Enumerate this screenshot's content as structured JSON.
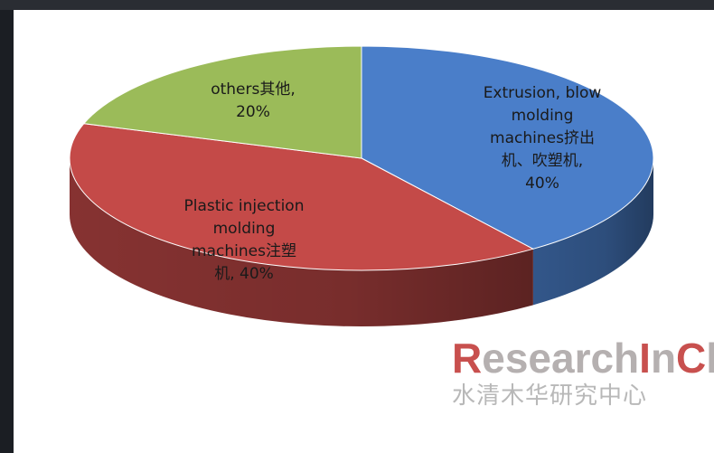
{
  "chart_data": {
    "type": "pie",
    "slices": [
      {
        "label_lines": [
          "Extrusion, blow",
          "molding",
          "machines挤出",
          "机、吹塑机,",
          "40%"
        ],
        "value": 40,
        "color": "#4a7ec9"
      },
      {
        "label_lines": [
          "Plastic injection",
          "molding",
          "machines注塑",
          "机, 40%"
        ],
        "value": 40,
        "color": "#c44a48"
      },
      {
        "label_lines": [
          "others其他,",
          "20%"
        ],
        "value": 20,
        "color": "#9bbb59"
      }
    ]
  },
  "watermark": {
    "en_parts": [
      "R",
      "esearch",
      "I",
      "n",
      "C",
      "hina"
    ],
    "cn": "水清木华研究中心"
  }
}
